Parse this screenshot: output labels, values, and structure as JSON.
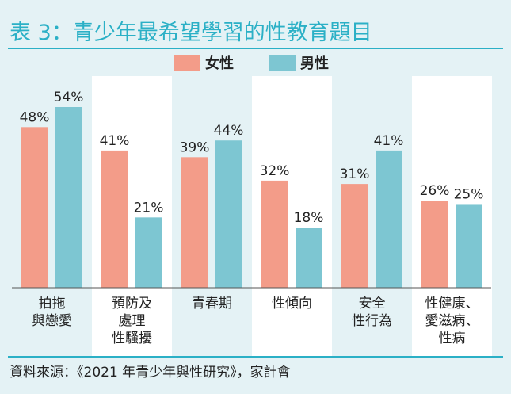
{
  "colors": {
    "female": "#f39c89",
    "male": "#7dc6d2",
    "title": "#2bb0c6",
    "background": "#e4f2f5",
    "panel": "#ffffff"
  },
  "source": "資料來源：《2021 年青少年與性研究》，家計會",
  "chart_data": {
    "type": "bar",
    "title": "表 3：青少年最希望學習的性教育題目",
    "categories": [
      [
        "拍拖",
        "與戀愛"
      ],
      [
        "預防及",
        "處理",
        "性騷擾"
      ],
      [
        "青春期"
      ],
      [
        "性傾向"
      ],
      [
        "安全",
        "性行為"
      ],
      [
        "性健康、",
        "愛滋病、",
        "性病"
      ]
    ],
    "series": [
      {
        "name": "女性",
        "values": [
          48,
          41,
          39,
          32,
          31,
          26
        ]
      },
      {
        "name": "男性",
        "values": [
          54,
          21,
          44,
          18,
          41,
          25
        ]
      }
    ],
    "value_suffix": "%",
    "ylim": [
      0,
      60
    ],
    "legend": "top-center",
    "grid": false
  }
}
